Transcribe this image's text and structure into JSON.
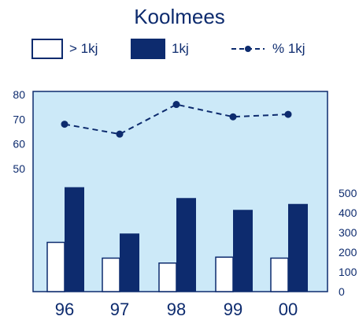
{
  "chart_data": {
    "type": "bar",
    "title": "Koolmees",
    "categories": [
      "96",
      "97",
      "98",
      "99",
      "00"
    ],
    "series": [
      {
        "name": "> 1kj",
        "kind": "bar",
        "style": "open",
        "axis": "right",
        "values": [
          250,
          170,
          145,
          175,
          170
        ]
      },
      {
        "name": "1kj",
        "kind": "bar",
        "style": "filled",
        "axis": "right",
        "values": [
          530,
          295,
          475,
          415,
          445
        ]
      },
      {
        "name": "% 1kj",
        "kind": "line",
        "style": "dashed-dot",
        "axis": "left",
        "values": [
          68,
          64,
          76,
          71,
          72
        ]
      }
    ],
    "y_left": {
      "ticks": [
        "50",
        "60",
        "70",
        "80"
      ],
      "range": [
        50,
        80
      ]
    },
    "y_right": {
      "ticks": [
        "0",
        "100",
        "200",
        "300",
        "400",
        "500"
      ],
      "range": [
        0,
        500
      ]
    },
    "colors": {
      "bar": "#0d2b6e",
      "background": "#cce9f8",
      "text": "#0d2b6e"
    },
    "legend_position": "top"
  }
}
